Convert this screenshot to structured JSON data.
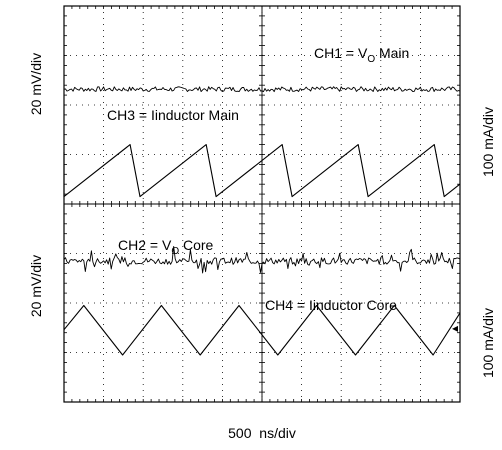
{
  "chart_data": {
    "type": "line",
    "grid": true,
    "xlabel": "500  ns/div",
    "divisions": {
      "x": 10,
      "y": 8
    },
    "axis_labels": {
      "left_top": "20 mV/div",
      "left_bottom": "20 mV/div",
      "right_top": "100 mA/div",
      "right_bottom": "100 mA/div"
    },
    "series": [
      {
        "name": "CH1",
        "label_prefix": "CH1 = V",
        "label_sub": "O",
        "label_suffix": " Main",
        "kind": "ripple",
        "baseline_div": 6.32,
        "noise_div": 0.05,
        "spikes": false,
        "x_div": [
          0,
          10
        ]
      },
      {
        "name": "CH3",
        "label": "CH3 = Iinductor Main",
        "kind": "sawtooth",
        "period_div": 1.92,
        "first_peak_div": -0.25,
        "fall_div": 0.25,
        "low_div": 4.15,
        "high_div": 5.2,
        "x_div": [
          0,
          10
        ]
      },
      {
        "name": "CH2",
        "label_prefix": "CH2 = V",
        "label_sub": "O",
        "label_suffix": " Core",
        "kind": "ripple",
        "baseline_div": 2.85,
        "noise_div": 0.07,
        "spikes": true,
        "x_div": [
          0,
          10
        ]
      },
      {
        "name": "CH4",
        "label": "CH4 = Iinductor Core",
        "kind": "triangle",
        "period_div": 1.96,
        "first_peak_div": 0.5,
        "low_div": 0.95,
        "high_div": 1.95,
        "x_div": [
          0,
          10
        ]
      }
    ],
    "marker": {
      "symbol": "◂",
      "level_div": 1.5
    }
  },
  "colors": {
    "trace": "#000000",
    "grid": "#000000",
    "background": "#ffffff"
  }
}
